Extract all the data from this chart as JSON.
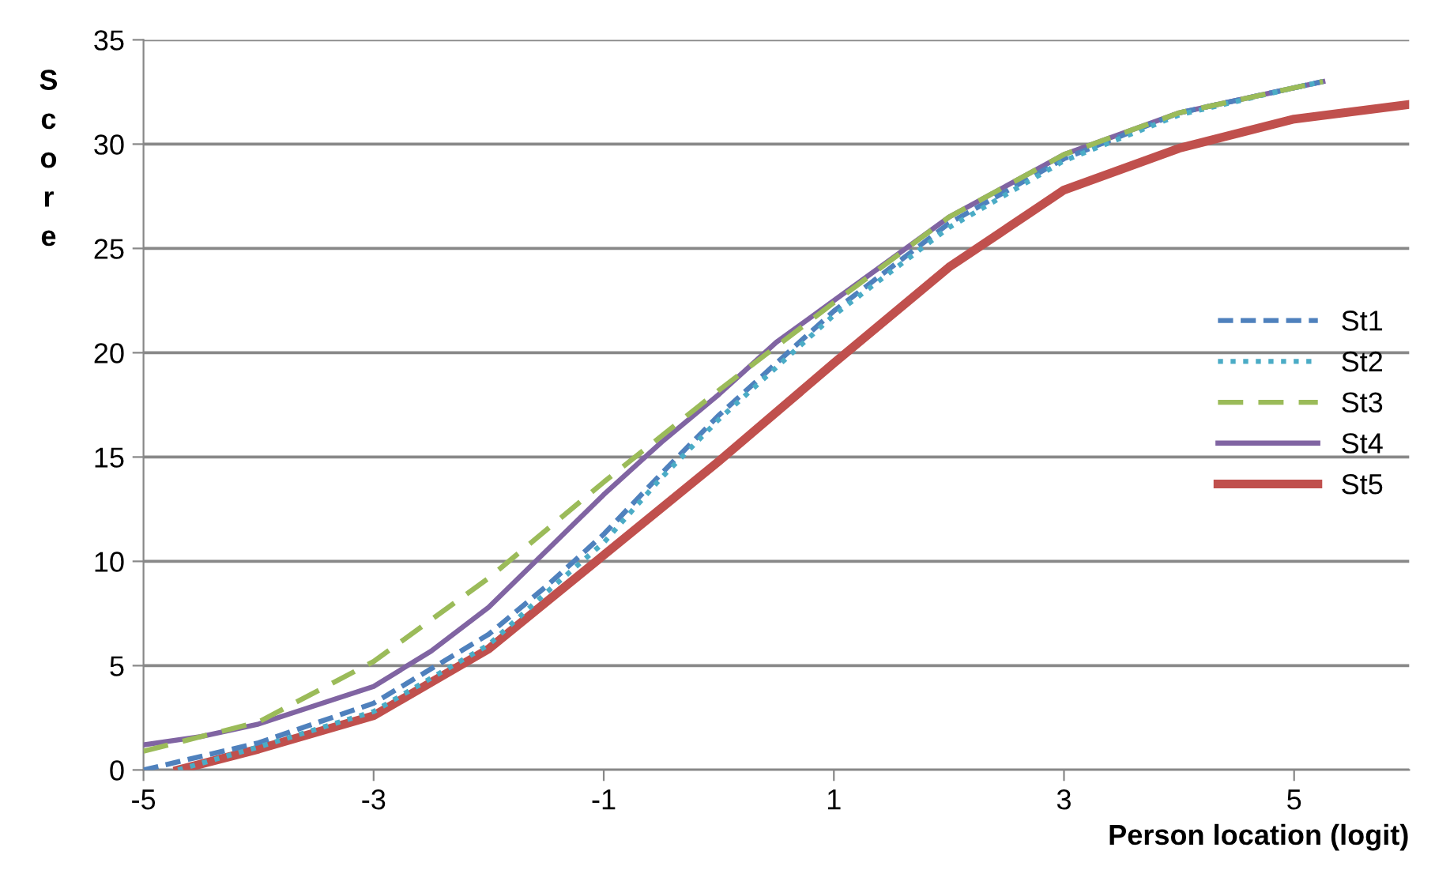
{
  "chart_data": {
    "type": "line",
    "xlabel": "Person location (logit)",
    "ylabel": "Score",
    "xlim": [
      -5,
      6
    ],
    "xticks": [
      -5,
      -3,
      -1,
      1,
      3,
      5
    ],
    "ylim": [
      0,
      35
    ],
    "yticks": [
      0,
      5,
      10,
      15,
      20,
      25,
      30,
      35
    ],
    "grid": "y",
    "legend": "right",
    "marker": "none",
    "series": [
      {
        "name": "St1",
        "color": "#4f81bd",
        "line_style": "dashed",
        "x": [
          -5,
          -4,
          -3,
          -2,
          -1.5,
          -1,
          -0.5,
          0,
          1,
          2,
          3,
          4,
          5,
          5.25
        ],
        "values": [
          0,
          1.3,
          3.2,
          6.5,
          8.8,
          11.3,
          14.2,
          17,
          22,
          26.2,
          29.3,
          31.5,
          32.7,
          33
        ]
      },
      {
        "name": "St2",
        "color": "#4bacc6",
        "line_style": "dotted",
        "x": [
          -4.7,
          -4,
          -3,
          -2,
          -1.5,
          -1,
          -0.5,
          0,
          1,
          2,
          3,
          4,
          5,
          5.25
        ],
        "values": [
          0,
          1.1,
          2.8,
          6,
          8.5,
          10.9,
          14,
          16.8,
          21.8,
          26,
          29.2,
          31.4,
          32.7,
          33
        ]
      },
      {
        "name": "St3",
        "color": "#9bbb59",
        "line_style": "dashed",
        "x": [
          -5,
          -4,
          -3,
          -2,
          -1,
          0,
          1,
          2,
          3,
          4,
          5,
          5.25
        ],
        "values": [
          0.9,
          2.3,
          5.2,
          9.2,
          13.8,
          18.2,
          22.4,
          26.5,
          29.5,
          31.5,
          32.7,
          33
        ]
      },
      {
        "name": "St4",
        "color": "#8064a2",
        "line_style": "solid",
        "x": [
          -5,
          -4.5,
          -4,
          -3,
          -2.5,
          -2,
          -1.5,
          -1,
          -0.5,
          0,
          0.5,
          1,
          2,
          3,
          4,
          5,
          5.25
        ],
        "values": [
          1.2,
          1.6,
          2.2,
          4,
          5.7,
          7.8,
          10.5,
          13.2,
          15.7,
          18,
          20.5,
          22.5,
          26.5,
          29.5,
          31.5,
          32.7,
          33
        ]
      },
      {
        "name": "St5",
        "color": "#c0504d",
        "line_style": "solid",
        "x": [
          -4.7,
          -4,
          -3,
          -2,
          -1,
          0,
          1,
          2,
          3,
          4,
          5,
          6
        ],
        "values": [
          0,
          1,
          2.6,
          5.8,
          10.3,
          14.8,
          19.5,
          24.1,
          27.8,
          29.8,
          31.2,
          31.9
        ]
      }
    ]
  }
}
